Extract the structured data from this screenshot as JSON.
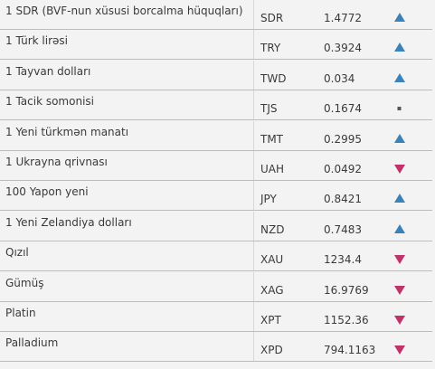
{
  "table": {
    "rows": [
      {
        "name": "1 SDR (BVF-nun xüsusi borcalma hüquqları)",
        "code": "SDR",
        "rate": "1.4772",
        "trend": "up"
      },
      {
        "name": "1 Türk lirəsi",
        "code": "TRY",
        "rate": "0.3924",
        "trend": "up"
      },
      {
        "name": "1 Tayvan dolları",
        "code": "TWD",
        "rate": "0.034",
        "trend": "up"
      },
      {
        "name": "1 Tacik somonisi",
        "code": "TJS",
        "rate": "0.1674",
        "trend": "flat"
      },
      {
        "name": "1 Yeni türkmən manatı",
        "code": "TMT",
        "rate": "0.2995",
        "trend": "up"
      },
      {
        "name": "1 Ukrayna qrivnası",
        "code": "UAH",
        "rate": "0.0492",
        "trend": "down"
      },
      {
        "name": "100 Yapon yeni",
        "code": "JPY",
        "rate": "0.8421",
        "trend": "up"
      },
      {
        "name": "1 Yeni Zelandiya dolları",
        "code": "NZD",
        "rate": "0.7483",
        "trend": "up"
      },
      {
        "name": "Qızıl",
        "code": "XAU",
        "rate": "1234.4",
        "trend": "down"
      },
      {
        "name": "Gümüş",
        "code": "XAG",
        "rate": "16.9769",
        "trend": "down"
      },
      {
        "name": "Platin",
        "code": "XPT",
        "rate": "1152.36",
        "trend": "down"
      },
      {
        "name": "Palladium",
        "code": "XPD",
        "rate": "794.1163",
        "trend": "down"
      }
    ]
  }
}
